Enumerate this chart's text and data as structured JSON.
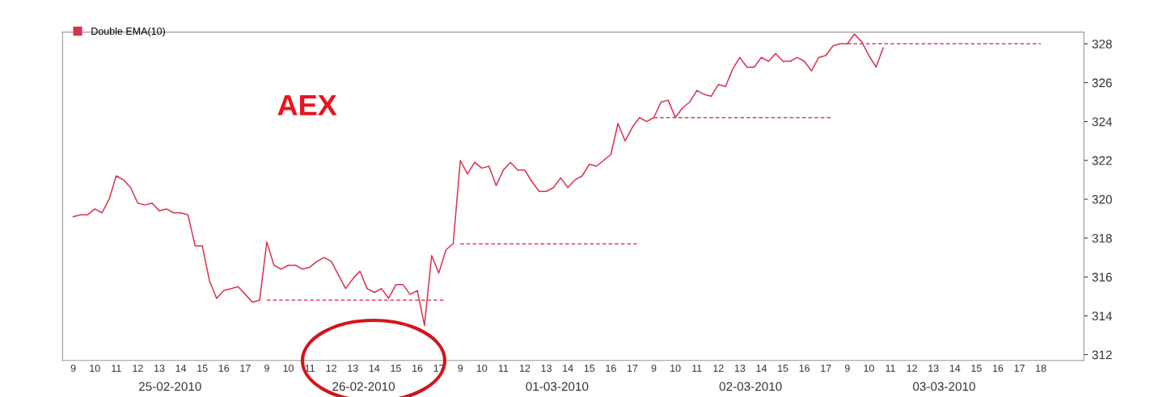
{
  "chart_data": {
    "type": "line",
    "categories": [
      "9",
      null,
      null,
      "10",
      null,
      null,
      "11",
      null,
      null,
      "12",
      null,
      null,
      "13",
      null,
      null,
      "14",
      null,
      null,
      "15",
      null,
      null,
      "16",
      null,
      null,
      "17",
      null,
      null,
      "9",
      null,
      null,
      "10",
      null,
      null,
      "11",
      null,
      null,
      "12",
      null,
      null,
      "13",
      null,
      null,
      "14",
      null,
      null,
      "15",
      null,
      null,
      "16",
      null,
      null,
      "17",
      null,
      null,
      "9",
      null,
      null,
      "10",
      null,
      null,
      "11",
      null,
      null,
      "12",
      null,
      null,
      "13",
      null,
      null,
      "14",
      null,
      null,
      "15",
      null,
      null,
      "16",
      null,
      null,
      "17",
      null,
      null,
      "9",
      null,
      null,
      "10",
      null,
      null,
      "11",
      null,
      null,
      "12",
      null,
      null,
      "13",
      null,
      null,
      "14",
      null,
      null,
      "15",
      null,
      null,
      "16",
      null,
      null,
      "17",
      null,
      null,
      "9",
      null,
      null,
      "10",
      null,
      null,
      "11",
      null,
      null,
      "12",
      null,
      null,
      "13",
      null,
      null,
      "14",
      null,
      null,
      "15",
      null,
      null,
      "16",
      null,
      null,
      "17",
      null,
      null,
      "18"
    ],
    "series": [
      {
        "name": "Double EMA(10)",
        "color": "#d6334f",
        "values": [
          319.1,
          319.2,
          319.2,
          319.5,
          319.3,
          320.0,
          321.2,
          321.0,
          320.6,
          319.8,
          319.7,
          319.8,
          319.4,
          319.5,
          319.3,
          319.3,
          319.2,
          317.6,
          317.6,
          315.8,
          314.9,
          315.3,
          315.4,
          315.5,
          315.1,
          314.7,
          314.8,
          317.8,
          316.6,
          316.4,
          316.6,
          316.6,
          316.4,
          316.5,
          316.8,
          317.0,
          316.8,
          316.1,
          315.4,
          315.9,
          316.3,
          315.4,
          315.2,
          315.4,
          314.9,
          315.6,
          315.6,
          315.1,
          315.3,
          313.5,
          317.1,
          316.2,
          317.4,
          317.7,
          322.0,
          321.3,
          321.9,
          321.6,
          321.7,
          320.7,
          321.5,
          321.9,
          321.5,
          321.5,
          320.9,
          320.4,
          320.4,
          320.6,
          321.1,
          320.6,
          321.0,
          321.2,
          321.8,
          321.7,
          322.0,
          322.3,
          323.9,
          323.0,
          323.7,
          324.2,
          324.0,
          324.2,
          325.0,
          325.1,
          324.2,
          324.7,
          325.0,
          325.6,
          325.4,
          325.3,
          325.9,
          325.8,
          326.7,
          327.3,
          326.8,
          326.8,
          327.3,
          327.1,
          327.5,
          327.1,
          327.1,
          327.3,
          327.1,
          326.6,
          327.3,
          327.4,
          327.9,
          328.0,
          328.0,
          328.5,
          328.1,
          327.4,
          326.8,
          327.8,
          null,
          null,
          null,
          null,
          null,
          null,
          null,
          null,
          null,
          null,
          null,
          null,
          null,
          null,
          null,
          null,
          null,
          null,
          null,
          null,
          null,
          null
        ]
      },
      {
        "color": "#e0405a",
        "line_style": "dashed",
        "values": [
          null,
          null,
          null,
          null,
          null,
          null,
          null,
          null,
          null,
          null,
          null,
          null,
          null,
          null,
          null,
          null,
          null,
          null,
          null,
          null,
          null,
          null,
          null,
          null,
          null,
          null,
          null,
          314.8,
          314.8,
          314.8,
          314.8,
          314.8,
          314.8,
          314.8,
          314.8,
          314.8,
          314.8,
          314.8,
          314.8,
          314.8,
          314.8,
          314.8,
          314.8,
          314.8,
          314.8,
          314.8,
          314.8,
          314.8,
          314.8,
          314.8,
          314.8,
          314.8,
          314.8,
          null,
          317.7,
          317.7,
          317.7,
          317.7,
          317.7,
          317.7,
          317.7,
          317.7,
          317.7,
          317.7,
          317.7,
          317.7,
          317.7,
          317.7,
          317.7,
          317.7,
          317.7,
          317.7,
          317.7,
          317.7,
          317.7,
          317.7,
          317.7,
          317.7,
          317.7,
          317.7,
          null,
          324.2,
          324.2,
          324.2,
          324.2,
          324.2,
          324.2,
          324.2,
          324.2,
          324.2,
          324.2,
          324.2,
          324.2,
          324.2,
          324.2,
          324.2,
          324.2,
          324.2,
          324.2,
          324.2,
          324.2,
          324.2,
          324.2,
          324.2,
          324.2,
          324.2,
          324.2,
          null,
          328.0,
          328.0,
          328.0,
          328.0,
          328.0,
          328.0,
          328.0,
          328.0,
          328.0,
          328.0,
          328.0,
          328.0,
          328.0,
          328.0,
          328.0,
          328.0,
          328.0,
          328.0,
          328.0,
          328.0,
          328.0,
          328.0,
          328.0,
          328.0,
          328.0,
          328.0,
          328.0,
          328.0
        ]
      }
    ],
    "ylim": [
      311.7,
      328.6
    ],
    "yticks": [
      312,
      314,
      316,
      318,
      320,
      322,
      324,
      326,
      328
    ],
    "annotations": [
      "AEX",
      "25-02-2010",
      "26-02-2010",
      "01-03-2010",
      "02-03-2010",
      "03-03-2010"
    ],
    "legend": "top left",
    "grid": false
  }
}
